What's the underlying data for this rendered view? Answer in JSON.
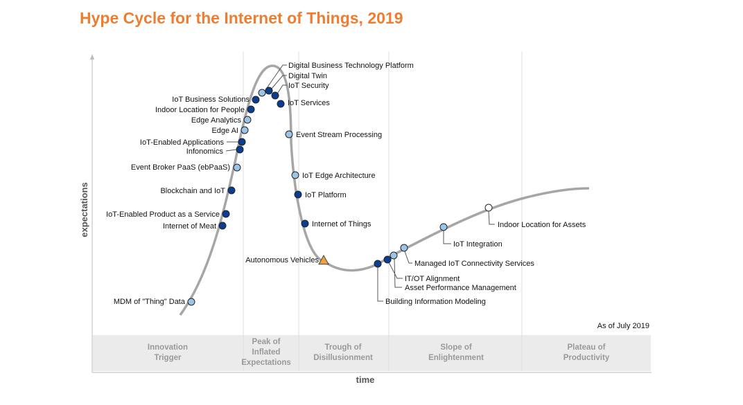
{
  "title": "Hype Cycle for the Internet of Things, 2019",
  "as_of": "As of July 2019",
  "colors": {
    "title": "#ED7D31",
    "curve": "#A6A6A6",
    "dark_marker": "#0B3D91",
    "light_marker": "#9DC3E6",
    "white_marker": "#FFFFFF",
    "triangle_marker": "#F2A03D",
    "phase_band": "#EBEBEB"
  },
  "chart_data": {
    "type": "scatter",
    "title": "Hype Cycle for the Internet of Things, 2019",
    "xlabel": "time",
    "ylabel": "expectations",
    "grid": false,
    "phases": [
      {
        "name": "Innovation Trigger",
        "lines": [
          "Innovation",
          "Trigger"
        ]
      },
      {
        "name": "Peak of Inflated Expectations",
        "lines": [
          "Peak of",
          "Inflated",
          "Expectations"
        ]
      },
      {
        "name": "Trough of Disillusionment",
        "lines": [
          "Trough of",
          "Disillusionment"
        ]
      },
      {
        "name": "Slope of Enlightenment",
        "lines": [
          "Slope of",
          "Enlightenment"
        ]
      },
      {
        "name": "Plateau of Productivity",
        "lines": [
          "Plateau of",
          "Productivity"
        ]
      }
    ],
    "legend_types": [
      "dark",
      "light",
      "white",
      "triangle"
    ],
    "technologies": [
      {
        "name": "Digital Business Technology Platform",
        "marker": "light"
      },
      {
        "name": "Digital Twin",
        "marker": "dark"
      },
      {
        "name": "IoT Security",
        "marker": "dark"
      },
      {
        "name": "IoT Services",
        "marker": "dark"
      },
      {
        "name": "IoT Business Solutions",
        "marker": "dark"
      },
      {
        "name": "Indoor Location for People",
        "marker": "dark"
      },
      {
        "name": "Edge Analytics",
        "marker": "light"
      },
      {
        "name": "Edge AI",
        "marker": "light"
      },
      {
        "name": "IoT-Enabled Applications",
        "marker": "dark"
      },
      {
        "name": "Infonomics",
        "marker": "dark"
      },
      {
        "name": "Event Broker PaaS (ebPaaS)",
        "marker": "light"
      },
      {
        "name": "Blockchain and IoT",
        "marker": "dark"
      },
      {
        "name": "IoT-Enabled Product as a Service",
        "marker": "dark"
      },
      {
        "name": "Internet of Meat",
        "marker": "dark"
      },
      {
        "name": "MDM of \"Thing\" Data",
        "marker": "light"
      },
      {
        "name": "Event Stream Processing",
        "marker": "light"
      },
      {
        "name": "IoT Edge Architecture",
        "marker": "light"
      },
      {
        "name": "IoT Platform",
        "marker": "dark"
      },
      {
        "name": "Internet of Things",
        "marker": "dark"
      },
      {
        "name": "Autonomous Vehicles",
        "marker": "triangle"
      },
      {
        "name": "Building Information Modeling",
        "marker": "dark"
      },
      {
        "name": "IT/OT Alignment",
        "marker": "dark"
      },
      {
        "name": "Asset Performance Management",
        "marker": "light"
      },
      {
        "name": "Managed IoT Connectivity Services",
        "marker": "light"
      },
      {
        "name": "IoT Integration",
        "marker": "light"
      },
      {
        "name": "Indoor Location for Assets",
        "marker": "white"
      }
    ]
  }
}
